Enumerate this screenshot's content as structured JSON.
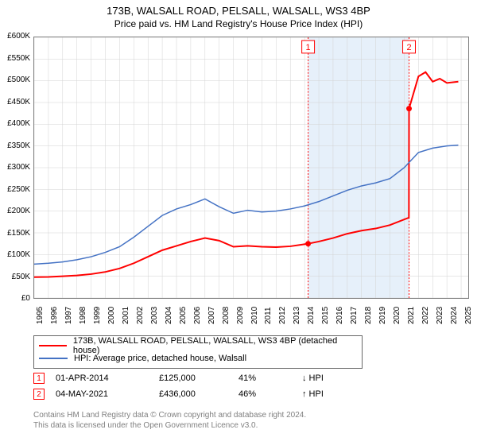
{
  "title_main": "173B, WALSALL ROAD, PELSALL, WALSALL, WS3 4BP",
  "title_sub": "Price paid vs. HM Land Registry's House Price Index (HPI)",
  "chart": {
    "type": "line",
    "background_color": "#ffffff",
    "border_color": "#808080",
    "grid_color": "#d3d3d3",
    "highlight_band_color": "#e6f0fa",
    "highlight_band_x": [
      2014.25,
      2021.34
    ],
    "xlim": [
      1995,
      2025.5
    ],
    "ylim": [
      0,
      600000
    ],
    "x_ticks": [
      1995,
      1996,
      1997,
      1998,
      1999,
      2000,
      2001,
      2002,
      2003,
      2004,
      2005,
      2006,
      2007,
      2008,
      2009,
      2010,
      2011,
      2012,
      2013,
      2014,
      2015,
      2016,
      2017,
      2018,
      2019,
      2020,
      2021,
      2022,
      2023,
      2024,
      2025
    ],
    "y_ticks": [
      0,
      50000,
      100000,
      150000,
      200000,
      250000,
      300000,
      350000,
      400000,
      450000,
      500000,
      550000,
      600000
    ],
    "y_tick_labels": [
      "£0",
      "£50K",
      "£100K",
      "£150K",
      "£200K",
      "£250K",
      "£300K",
      "£350K",
      "£400K",
      "£450K",
      "£500K",
      "£550K",
      "£600K"
    ],
    "tick_fontsize": 10,
    "series": [
      {
        "name": "price_paid",
        "label": "173B, WALSALL ROAD, PELSALL, WALSALL, WS3 4BP (detached house)",
        "color": "#ff0000",
        "line_width": 2,
        "data": [
          [
            1995,
            48000
          ],
          [
            1996,
            48500
          ],
          [
            1997,
            50000
          ],
          [
            1998,
            52000
          ],
          [
            1999,
            55000
          ],
          [
            2000,
            60000
          ],
          [
            2001,
            68000
          ],
          [
            2002,
            80000
          ],
          [
            2003,
            95000
          ],
          [
            2004,
            110000
          ],
          [
            2005,
            120000
          ],
          [
            2006,
            130000
          ],
          [
            2007,
            138000
          ],
          [
            2008,
            132000
          ],
          [
            2009,
            118000
          ],
          [
            2010,
            120000
          ],
          [
            2011,
            118000
          ],
          [
            2012,
            117000
          ],
          [
            2013,
            119000
          ],
          [
            2014.25,
            125000
          ],
          [
            2015,
            130000
          ],
          [
            2016,
            138000
          ],
          [
            2017,
            148000
          ],
          [
            2018,
            155000
          ],
          [
            2019,
            160000
          ],
          [
            2020,
            168000
          ],
          [
            2021.33,
            185000
          ],
          [
            2021.34,
            436000
          ],
          [
            2022,
            510000
          ],
          [
            2022.5,
            520000
          ],
          [
            2023,
            498000
          ],
          [
            2023.5,
            505000
          ],
          [
            2024,
            495000
          ],
          [
            2024.8,
            498000
          ]
        ]
      },
      {
        "name": "hpi",
        "label": "HPI: Average price, detached house, Walsall",
        "color": "#4472c4",
        "line_width": 1.5,
        "data": [
          [
            1995,
            78000
          ],
          [
            1996,
            80000
          ],
          [
            1997,
            83000
          ],
          [
            1998,
            88000
          ],
          [
            1999,
            95000
          ],
          [
            2000,
            105000
          ],
          [
            2001,
            118000
          ],
          [
            2002,
            140000
          ],
          [
            2003,
            165000
          ],
          [
            2004,
            190000
          ],
          [
            2005,
            205000
          ],
          [
            2006,
            215000
          ],
          [
            2007,
            228000
          ],
          [
            2008,
            210000
          ],
          [
            2009,
            195000
          ],
          [
            2010,
            202000
          ],
          [
            2011,
            198000
          ],
          [
            2012,
            200000
          ],
          [
            2013,
            205000
          ],
          [
            2014,
            212000
          ],
          [
            2015,
            222000
          ],
          [
            2016,
            235000
          ],
          [
            2017,
            248000
          ],
          [
            2018,
            258000
          ],
          [
            2019,
            265000
          ],
          [
            2020,
            275000
          ],
          [
            2021,
            300000
          ],
          [
            2022,
            335000
          ],
          [
            2023,
            345000
          ],
          [
            2024,
            350000
          ],
          [
            2024.8,
            352000
          ]
        ]
      }
    ],
    "sale_markers": [
      {
        "n": "1",
        "x": 2014.25,
        "y": 125000,
        "color": "#ff0000"
      },
      {
        "n": "2",
        "x": 2021.34,
        "y": 436000,
        "color": "#ff0000"
      }
    ]
  },
  "legend": {
    "border_color": "#666666",
    "fontsize": 11,
    "items": [
      {
        "color": "#ff0000",
        "width": 2,
        "label": "173B, WALSALL ROAD, PELSALL, WALSALL, WS3 4BP (detached house)"
      },
      {
        "color": "#4472c4",
        "width": 1.5,
        "label": "HPI: Average price, detached house, Walsall"
      }
    ]
  },
  "sales": [
    {
      "n": "1",
      "date": "01-APR-2014",
      "price": "£125,000",
      "pct": "41%",
      "arrow": "↓",
      "vs": "HPI"
    },
    {
      "n": "2",
      "date": "04-MAY-2021",
      "price": "£436,000",
      "pct": "46%",
      "arrow": "↑",
      "vs": "HPI"
    }
  ],
  "footer_line1": "Contains HM Land Registry data © Crown copyright and database right 2024.",
  "footer_line2": "This data is licensed under the Open Government Licence v3.0."
}
